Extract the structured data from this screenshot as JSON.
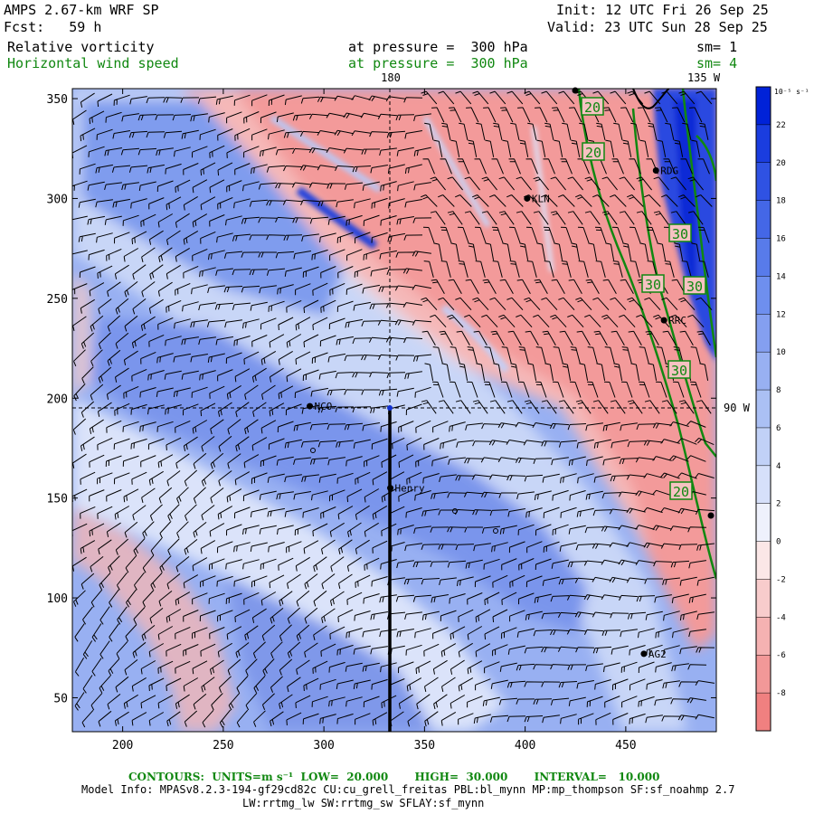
{
  "header": {
    "model": "AMPS 2.67-km WRF SP",
    "fcst": "Fcst:   59 h",
    "init": "Init: 12 UTC Fri 26 Sep 25",
    "valid": "Valid: 23 UTC Sun 28 Sep 25",
    "field1": {
      "name": "Relative vorticity",
      "pressure": "at pressure =  300 hPa",
      "sm": "sm= 1",
      "color": "#000000"
    },
    "field2": {
      "name": "Horizontal wind speed",
      "pressure": "at pressure =  300 hPa",
      "sm": "sm= 4",
      "color": "#118811"
    }
  },
  "map": {
    "x_ticks": [
      "200",
      "250",
      "300",
      "350",
      "400",
      "450"
    ],
    "y_ticks": [
      "350",
      "300",
      "250",
      "200",
      "150",
      "100",
      "50"
    ],
    "meridian_labels": [
      "180",
      "135 W",
      "90 W"
    ],
    "stations": [
      {
        "id": "NCO",
        "x": 293,
        "y": 196
      },
      {
        "id": "Henry",
        "x": 333,
        "y": 155
      },
      {
        "id": "KLN",
        "x": 401,
        "y": 300
      },
      {
        "id": "RDG",
        "x": 465,
        "y": 314
      },
      {
        "id": "RRC",
        "x": 469,
        "y": 239
      },
      {
        "id": "AG2",
        "x": 459,
        "y": 72
      }
    ],
    "contour_labels": [
      "20",
      "20",
      "30",
      "30",
      "30",
      "30",
      "20"
    ]
  },
  "colorbar": {
    "unit": "10⁻⁵ s⁻¹",
    "labels": [
      "22",
      "20",
      "18",
      "16",
      "14",
      "12",
      "10",
      "8",
      "6",
      "4",
      "2",
      "0",
      "-2",
      "-4",
      "-6",
      "-8"
    ],
    "colors": [
      "#0022d8",
      "#1a3ddf",
      "#2f52e3",
      "#4467e7",
      "#587bea",
      "#6e8fee",
      "#849ff0",
      "#98b0f2",
      "#abc0f4",
      "#c1d1f7",
      "#d6e0fa",
      "#eef1fc",
      "#fbe7e7",
      "#f8cccc",
      "#f5b2b2",
      "#f29898",
      "#f08080"
    ]
  },
  "footer": {
    "contours": "CONTOURS:  UNITS=m s⁻¹  LOW=  20.000       HIGH=  30.000       INTERVAL=   10.000",
    "model_info": "Model Info: MPASv8.2.3-194-gf29cd82c CU:cu_grell_freitas PBL:bl_mynn MP:mp_thompson SF:sf_noahmp 2.7",
    "model_info2": "LW:rrtmg_lw SW:rrtmg_sw SFLAY:sf_mynn"
  }
}
